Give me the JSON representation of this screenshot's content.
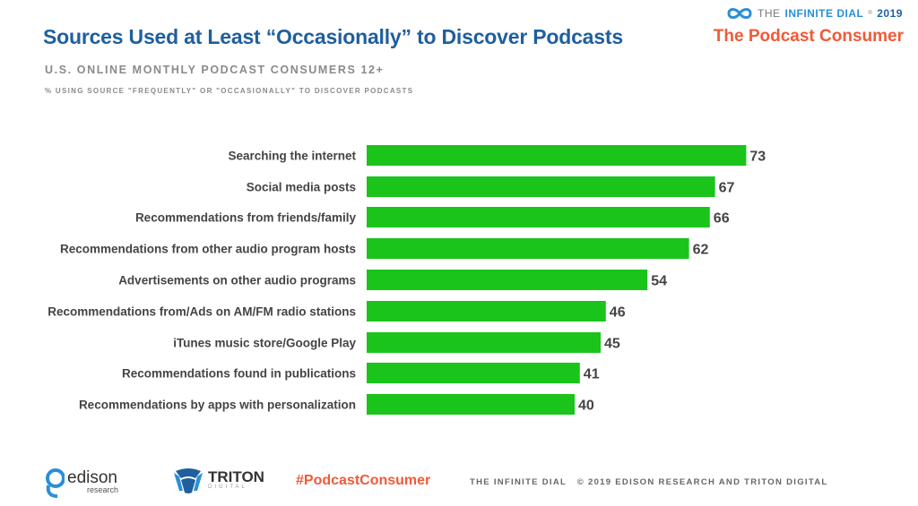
{
  "header": {
    "title": "Sources Used at Least “Occasionally” to Discover Podcasts",
    "subtitle": "U.S. ONLINE MONTHLY PODCAST CONSUMERS 12+",
    "note": "% USING SOURCE \"FREQUENTLY\" OR \"OCCASIONALLY\" TO DISCOVER PODCASTS"
  },
  "brand": {
    "the": "THE",
    "infinite_dial": "INFINITE DIAL",
    "year": "2019",
    "report_name": "The Podcast Consumer"
  },
  "footer": {
    "edison_name": "edison",
    "edison_sub": "research",
    "triton_name": "TRITON",
    "triton_sub": "DIGITAL",
    "hashtag": "#PodcastConsumer",
    "copyright": "THE INFINITE DIAL   © 2019 EDISON RESEARCH AND TRITON DIGITAL"
  },
  "colors": {
    "bar": "#1ac41a",
    "title": "#1f5f9e",
    "accent": "#f05a38"
  },
  "icons": [
    "infinity-logo-icon",
    "edison-logo-icon",
    "triton-logo-icon"
  ],
  "chart_data": {
    "type": "bar",
    "orientation": "horizontal",
    "categories": [
      "Searching the internet",
      "Social media posts",
      "Recommendations from friends/family",
      "Recommendations from other audio program hosts",
      "Advertisements on other audio programs",
      "Recommendations from/Ads on AM/FM radio stations",
      "iTunes music store/Google Play",
      "Recommendations found in publications",
      "Recommendations by apps with personalization"
    ],
    "values": [
      73,
      67,
      66,
      62,
      54,
      46,
      45,
      41,
      40
    ],
    "title": "Sources Used at Least “Occasionally” to Discover Podcasts",
    "xlim": [
      0,
      100
    ],
    "grid": false,
    "legend": "none",
    "data_labels": true
  }
}
